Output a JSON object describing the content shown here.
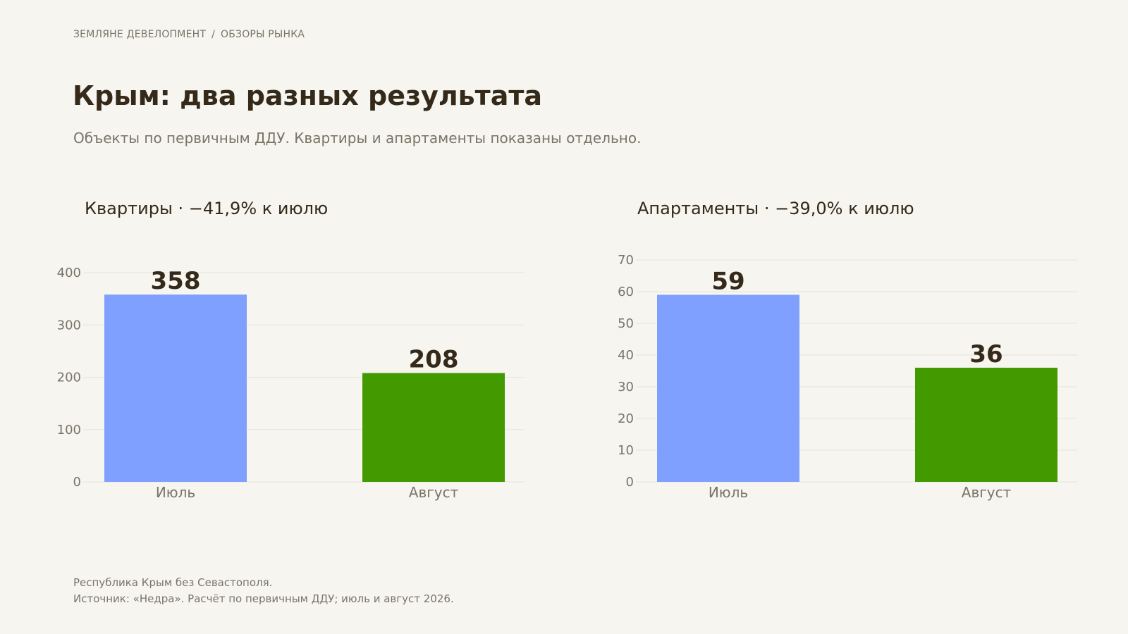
{
  "breadcrumb": {
    "org": "ЗЕМЛЯНЕ ДЕВЕЛОПМЕНТ",
    "separator": "/",
    "section": "ОБЗОРЫ РЫНКА"
  },
  "header": {
    "title": "Крым: два разных результата",
    "subtitle": "Объекты по первичным ДДУ. Квартиры и апартаменты показаны отдельно."
  },
  "colors": {
    "july": "#80a0ff",
    "august": "#429a00",
    "text": "#35291a",
    "muted": "#7a7468",
    "grid": "#e6e4dc",
    "background": "#f6f5ef"
  },
  "chart_data": [
    {
      "type": "bar",
      "title": "Квартиры · −41,9% к июлю",
      "categories": [
        "Июль",
        "Август"
      ],
      "values": [
        358,
        208
      ],
      "value_labels": [
        "358",
        "208"
      ],
      "ylim": [
        0,
        400
      ],
      "yticks": [
        0,
        100,
        200,
        300,
        400
      ],
      "ytick_labels": [
        "0",
        "100",
        "200",
        "300",
        "400"
      ],
      "grid": true,
      "legend": "none"
    },
    {
      "type": "bar",
      "title": "Апартаменты · −39,0% к июлю",
      "categories": [
        "Июль",
        "Август"
      ],
      "values": [
        59,
        36
      ],
      "value_labels": [
        "59",
        "36"
      ],
      "ylim": [
        0,
        70
      ],
      "yticks": [
        0,
        10,
        20,
        30,
        40,
        50,
        60,
        70
      ],
      "ytick_labels": [
        "0",
        "10",
        "20",
        "30",
        "40",
        "50",
        "60",
        "70"
      ],
      "grid": true,
      "legend": "none"
    }
  ],
  "footer": {
    "note": "Республика Крым без Севастополя.",
    "source": "Источник: «Недра». Расчёт по первичным ДДУ; июль и август 2026."
  }
}
